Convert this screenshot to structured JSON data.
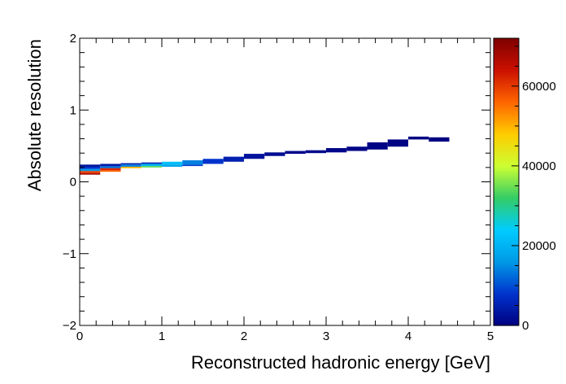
{
  "chart_data": {
    "type": "heatmap",
    "xlabel": "Reconstructed hadronic energy [GeV]",
    "ylabel": "Absolute resolution",
    "xlim": [
      0,
      5
    ],
    "ylim": [
      -2,
      2
    ],
    "x_ticks": [
      "0",
      "1",
      "2",
      "3",
      "4",
      "5"
    ],
    "y_ticks": [
      "−2",
      "−1",
      "0",
      "1",
      "2"
    ],
    "colorbar": {
      "range": [
        0,
        72000
      ],
      "ticks": [
        "0",
        "20000",
        "40000",
        "60000"
      ],
      "tick_values": [
        0,
        20000,
        40000,
        60000
      ],
      "palette": [
        "#00007f",
        "#0033cc",
        "#0099e6",
        "#00ccff",
        "#33cc66",
        "#ccff33",
        "#ffcc00",
        "#ff6600",
        "#cc1100",
        "#7f0000"
      ]
    },
    "bin_width": 0.25,
    "bins": [
      {
        "x": 0.0,
        "cells": [
          {
            "y0": 0.21,
            "y1": 0.24,
            "count": 3000
          },
          {
            "y0": 0.18,
            "y1": 0.21,
            "count": 8000
          },
          {
            "y0": 0.15,
            "y1": 0.18,
            "count": 16000
          },
          {
            "y0": 0.12,
            "y1": 0.15,
            "count": 60000
          },
          {
            "y0": 0.1,
            "y1": 0.12,
            "count": 68000
          }
        ]
      },
      {
        "x": 0.25,
        "cells": [
          {
            "y0": 0.22,
            "y1": 0.25,
            "count": 4000
          },
          {
            "y0": 0.19,
            "y1": 0.22,
            "count": 12000
          },
          {
            "y0": 0.16,
            "y1": 0.19,
            "count": 62000
          },
          {
            "y0": 0.14,
            "y1": 0.16,
            "count": 56000
          }
        ]
      },
      {
        "x": 0.5,
        "cells": [
          {
            "y0": 0.24,
            "y1": 0.26,
            "count": 5000
          },
          {
            "y0": 0.21,
            "y1": 0.24,
            "count": 14000
          },
          {
            "y0": 0.19,
            "y1": 0.21,
            "count": 50000
          }
        ]
      },
      {
        "x": 0.75,
        "cells": [
          {
            "y0": 0.25,
            "y1": 0.27,
            "count": 6000
          },
          {
            "y0": 0.22,
            "y1": 0.25,
            "count": 20000
          },
          {
            "y0": 0.2,
            "y1": 0.22,
            "count": 34000
          }
        ]
      },
      {
        "x": 1.0,
        "cells": [
          {
            "y0": 0.24,
            "y1": 0.28,
            "count": 22000
          },
          {
            "y0": 0.21,
            "y1": 0.24,
            "count": 18000
          }
        ]
      },
      {
        "x": 1.25,
        "cells": [
          {
            "y0": 0.24,
            "y1": 0.3,
            "count": 14000
          },
          {
            "y0": 0.22,
            "y1": 0.24,
            "count": 9000
          }
        ]
      },
      {
        "x": 1.5,
        "cells": [
          {
            "y0": 0.25,
            "y1": 0.32,
            "count": 8000
          }
        ]
      },
      {
        "x": 1.75,
        "cells": [
          {
            "y0": 0.28,
            "y1": 0.35,
            "count": 5000
          }
        ]
      },
      {
        "x": 2.0,
        "cells": [
          {
            "y0": 0.32,
            "y1": 0.39,
            "count": 3000
          }
        ]
      },
      {
        "x": 2.25,
        "cells": [
          {
            "y0": 0.36,
            "y1": 0.41,
            "count": 2000
          }
        ]
      },
      {
        "x": 2.5,
        "cells": [
          {
            "y0": 0.39,
            "y1": 0.43,
            "count": 1500
          }
        ]
      },
      {
        "x": 2.75,
        "cells": [
          {
            "y0": 0.4,
            "y1": 0.44,
            "count": 1200
          }
        ]
      },
      {
        "x": 3.0,
        "cells": [
          {
            "y0": 0.41,
            "y1": 0.47,
            "count": 1000
          }
        ]
      },
      {
        "x": 3.25,
        "cells": [
          {
            "y0": 0.43,
            "y1": 0.49,
            "count": 800
          }
        ]
      },
      {
        "x": 3.5,
        "cells": [
          {
            "y0": 0.45,
            "y1": 0.55,
            "count": 600
          }
        ]
      },
      {
        "x": 3.75,
        "cells": [
          {
            "y0": 0.49,
            "y1": 0.59,
            "count": 500
          }
        ]
      },
      {
        "x": 4.0,
        "cells": [
          {
            "y0": 0.59,
            "y1": 0.63,
            "count": 400
          }
        ]
      },
      {
        "x": 4.25,
        "cells": [
          {
            "y0": 0.56,
            "y1": 0.62,
            "count": 300
          }
        ]
      }
    ]
  }
}
